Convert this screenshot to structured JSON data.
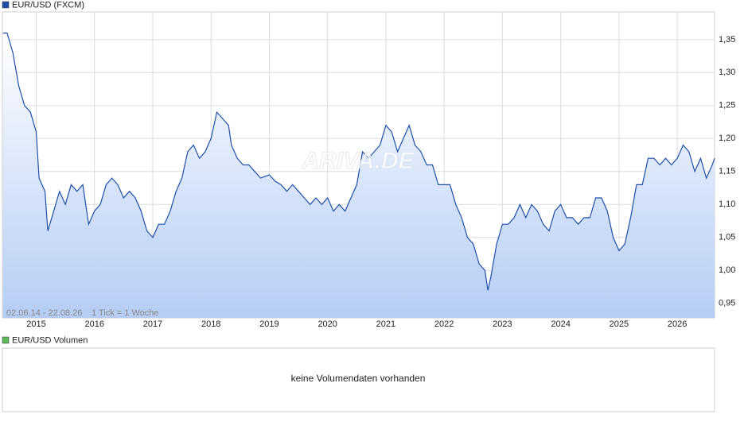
{
  "chart_data": {
    "type": "line",
    "title": "EUR/USD (FXCM)",
    "watermark": "ARIVA.DE",
    "range_label": "02.06.14 - 22.08.26",
    "tick_label": "1 Tick = 1 Woche",
    "xlim": [
      2014.42,
      2026.64
    ],
    "xticks": [
      2015,
      2016,
      2017,
      2018,
      2019,
      2020,
      2021,
      2022,
      2023,
      2024,
      2025,
      2026
    ],
    "ylim": [
      0.928,
      1.392
    ],
    "yticks": [
      {
        "value": 0.95,
        "label": "0,95"
      },
      {
        "value": 1.0,
        "label": "1,00"
      },
      {
        "value": 1.05,
        "label": "1,05"
      },
      {
        "value": 1.1,
        "label": "1,10"
      },
      {
        "value": 1.15,
        "label": "1,15"
      },
      {
        "value": 1.2,
        "label": "1,20"
      },
      {
        "value": 1.25,
        "label": "1,25"
      },
      {
        "value": 1.3,
        "label": "1,30"
      },
      {
        "value": 1.35,
        "label": "1,35"
      }
    ],
    "grid": true,
    "series": [
      {
        "name": "EUR/USD (FXCM)",
        "color": "#1f4fa8",
        "x": [
          2014.43,
          2014.5,
          2014.6,
          2014.7,
          2014.8,
          2014.9,
          2015.0,
          2015.05,
          2015.15,
          2015.2,
          2015.3,
          2015.4,
          2015.5,
          2015.6,
          2015.7,
          2015.8,
          2015.9,
          2016.0,
          2016.1,
          2016.2,
          2016.3,
          2016.4,
          2016.5,
          2016.6,
          2016.7,
          2016.8,
          2016.9,
          2017.0,
          2017.1,
          2017.2,
          2017.3,
          2017.4,
          2017.5,
          2017.6,
          2017.7,
          2017.8,
          2017.9,
          2018.0,
          2018.1,
          2018.2,
          2018.3,
          2018.35,
          2018.45,
          2018.55,
          2018.65,
          2018.75,
          2018.85,
          2019.0,
          2019.1,
          2019.2,
          2019.3,
          2019.4,
          2019.5,
          2019.6,
          2019.7,
          2019.8,
          2019.9,
          2020.0,
          2020.1,
          2020.2,
          2020.3,
          2020.4,
          2020.5,
          2020.6,
          2020.7,
          2020.8,
          2020.9,
          2021.0,
          2021.1,
          2021.2,
          2021.3,
          2021.4,
          2021.5,
          2021.6,
          2021.7,
          2021.8,
          2021.9,
          2022.0,
          2022.1,
          2022.2,
          2022.3,
          2022.4,
          2022.5,
          2022.6,
          2022.7,
          2022.75,
          2022.8,
          2022.9,
          2023.0,
          2023.1,
          2023.2,
          2023.3,
          2023.4,
          2023.5,
          2023.6,
          2023.7,
          2023.8,
          2023.9,
          2024.0,
          2024.1,
          2024.2,
          2024.3,
          2024.4,
          2024.5,
          2024.6,
          2024.7,
          2024.8,
          2024.9,
          2025.0,
          2025.1,
          2025.2,
          2025.3,
          2025.4,
          2025.5,
          2025.6,
          2025.7,
          2025.8,
          2025.9,
          2026.0,
          2026.1,
          2026.2,
          2026.3,
          2026.4,
          2026.5,
          2026.6,
          2026.64
        ],
        "values": [
          1.36,
          1.36,
          1.33,
          1.28,
          1.25,
          1.24,
          1.21,
          1.14,
          1.12,
          1.06,
          1.09,
          1.12,
          1.1,
          1.13,
          1.12,
          1.13,
          1.07,
          1.09,
          1.1,
          1.13,
          1.14,
          1.13,
          1.11,
          1.12,
          1.11,
          1.09,
          1.06,
          1.05,
          1.07,
          1.07,
          1.09,
          1.12,
          1.14,
          1.18,
          1.19,
          1.17,
          1.18,
          1.2,
          1.24,
          1.23,
          1.22,
          1.19,
          1.17,
          1.16,
          1.16,
          1.15,
          1.14,
          1.145,
          1.135,
          1.13,
          1.12,
          1.13,
          1.12,
          1.11,
          1.1,
          1.11,
          1.1,
          1.11,
          1.09,
          1.1,
          1.09,
          1.11,
          1.13,
          1.18,
          1.17,
          1.18,
          1.19,
          1.22,
          1.21,
          1.18,
          1.2,
          1.22,
          1.19,
          1.18,
          1.16,
          1.16,
          1.13,
          1.13,
          1.13,
          1.1,
          1.08,
          1.05,
          1.04,
          1.01,
          1.0,
          0.97,
          0.99,
          1.04,
          1.07,
          1.07,
          1.08,
          1.1,
          1.08,
          1.1,
          1.09,
          1.07,
          1.06,
          1.09,
          1.1,
          1.08,
          1.08,
          1.07,
          1.08,
          1.08,
          1.11,
          1.11,
          1.09,
          1.05,
          1.03,
          1.04,
          1.08,
          1.13,
          1.13,
          1.17,
          1.17,
          1.16,
          1.17,
          1.16,
          1.17,
          1.19,
          1.18,
          1.15,
          1.17,
          1.14,
          1.16,
          1.17
        ]
      }
    ],
    "volume": {
      "name": "EUR/USD Volumen",
      "color": "#5cb85c",
      "message": "keine Volumendaten vorhanden"
    }
  }
}
